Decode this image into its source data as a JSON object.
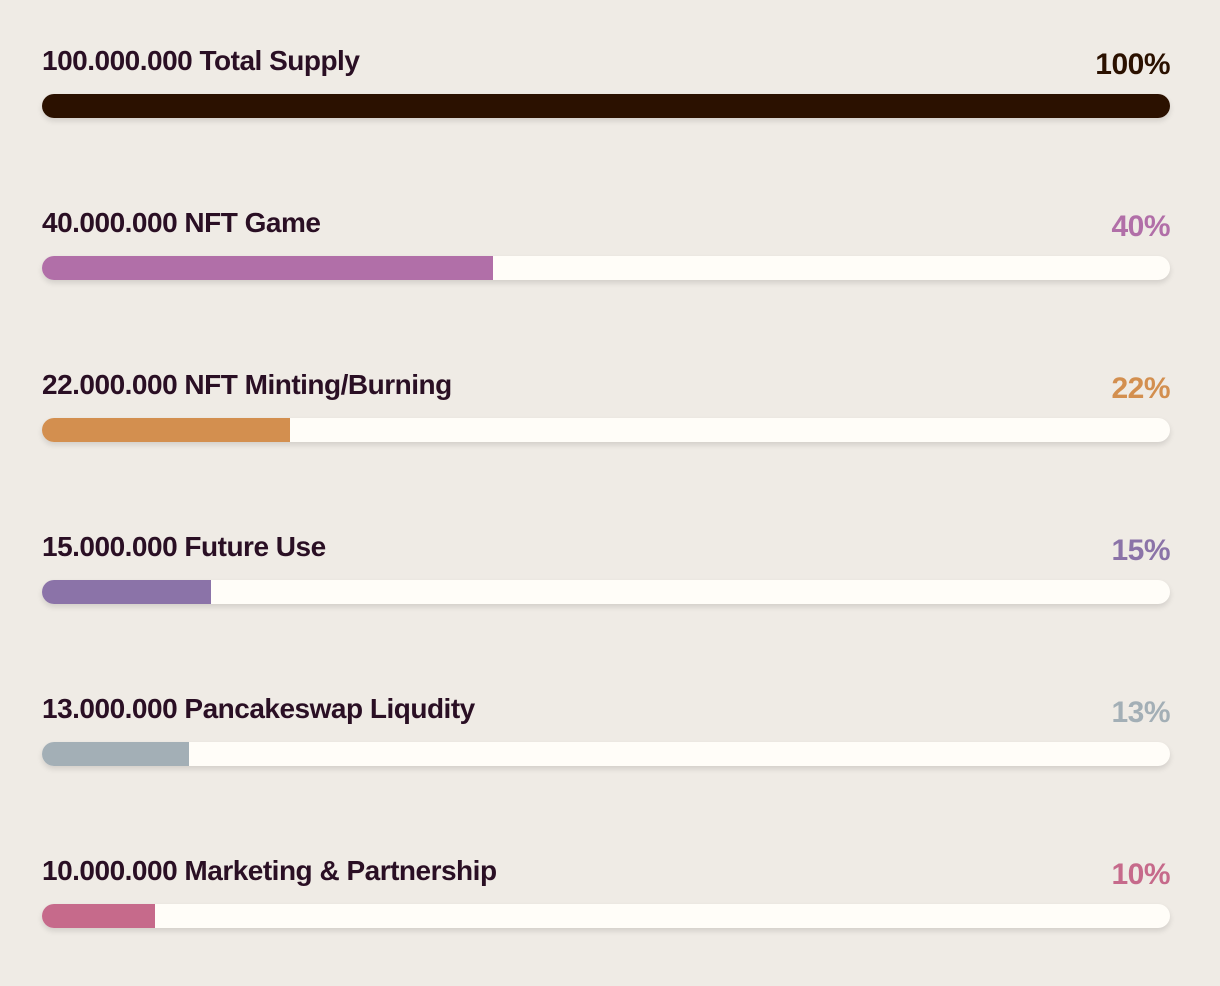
{
  "chart_data": {
    "type": "progress",
    "categories": [
      "100.000.000 Total Supply",
      "40.000.000 NFT Game",
      "22.000.000 NFT Minting/Burning",
      "15.000.000 Future Use",
      "13.000.000 Pancakeswap Liqudity",
      "10.000.000 Marketing & Partnership"
    ],
    "values": [
      100,
      40,
      22,
      15,
      13,
      10
    ],
    "value_labels": [
      "100%",
      "40%",
      "22%",
      "15%",
      "13%",
      "10%"
    ],
    "colors": [
      "#2b1100",
      "#b16fa8",
      "#d38f4f",
      "#8b73a8",
      "#a3afb6",
      "#c66a8b"
    ],
    "xlim": [
      0,
      100
    ]
  }
}
